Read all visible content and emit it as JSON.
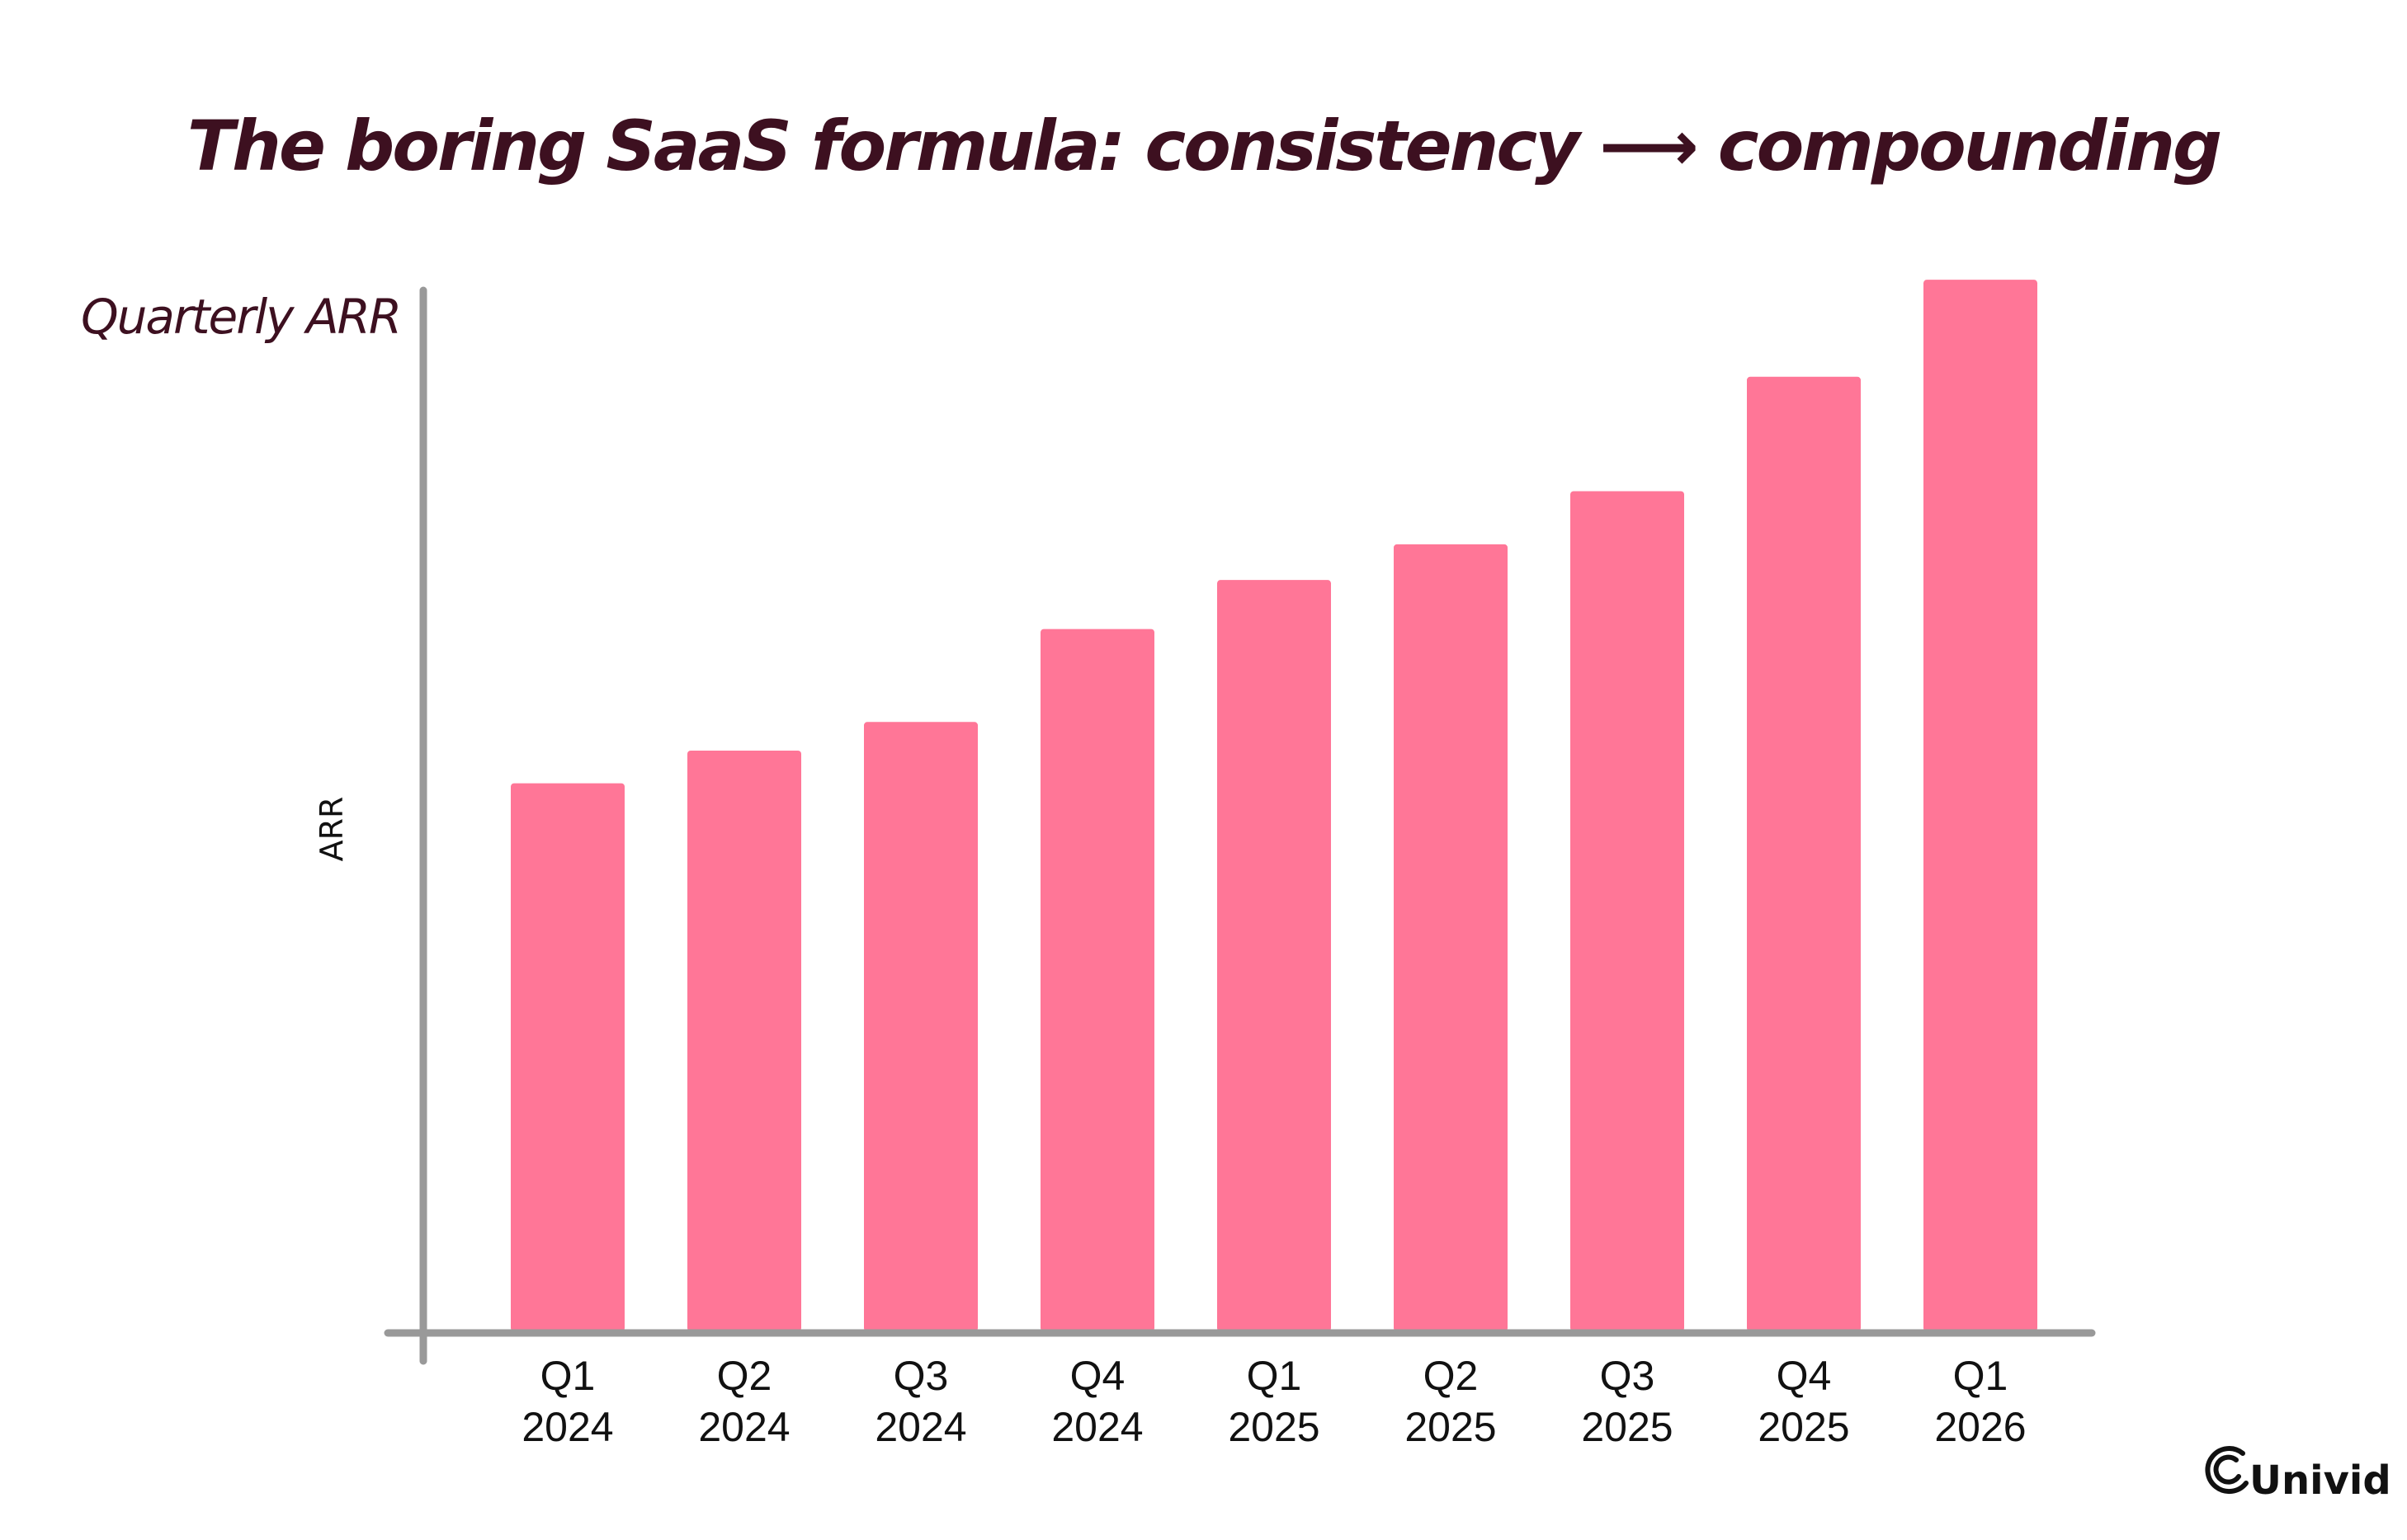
{
  "chart_data": {
    "type": "bar",
    "title": "The boring SaaS formula: consistency ⟶ compounding",
    "subtitle": "Quarterly ARR",
    "ylabel": "ARR",
    "xlabel": "",
    "categories": [
      [
        "Q1",
        "2024"
      ],
      [
        "Q2",
        "2024"
      ],
      [
        "Q3",
        "2024"
      ],
      [
        "Q4",
        "2024"
      ],
      [
        "Q1",
        "2025"
      ],
      [
        "Q2",
        "2025"
      ],
      [
        "Q3",
        "2025"
      ],
      [
        "Q4",
        "2025"
      ],
      [
        "Q1",
        "2026"
      ]
    ],
    "values": [
      53.5,
      56.7,
      59.5,
      68.6,
      73.4,
      76.9,
      82.1,
      93.3,
      102.8
    ],
    "ylim": [
      0,
      110
    ],
    "grid": false,
    "legend": "none",
    "bar_color": "#ff7697",
    "axis_color": "#999999"
  },
  "brand": {
    "name": "Univid",
    "icon": "univid-logo-icon"
  }
}
